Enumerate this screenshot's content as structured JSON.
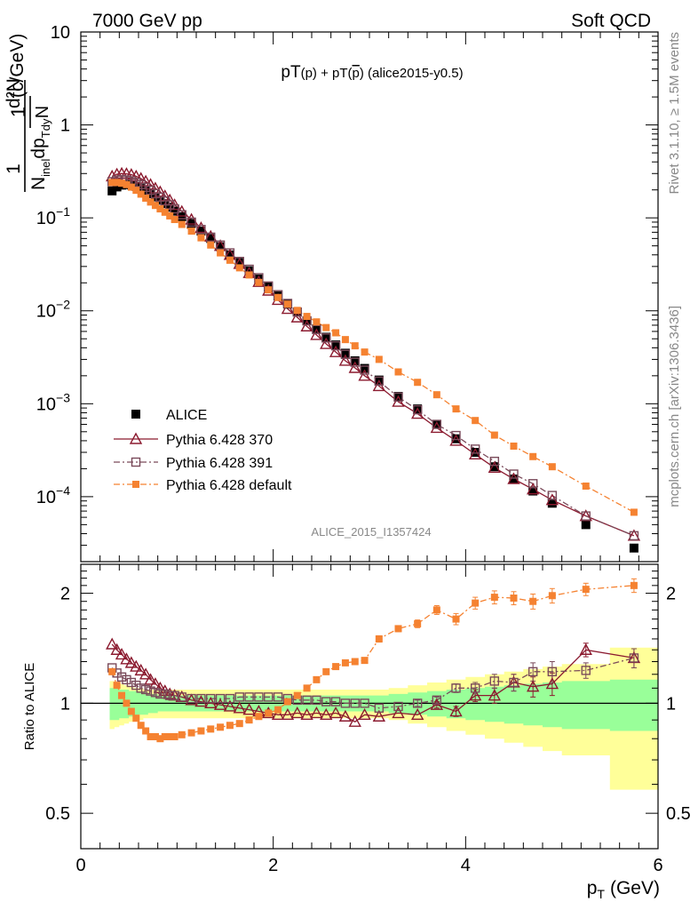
{
  "header": {
    "left": "7000 GeV pp",
    "right": "Soft QCD"
  },
  "side_labels": {
    "rivet": "Rivet 3.1.10, ≥ 1.5M events",
    "mcplots": "mcplots.cern.ch [arXiv:1306.3436]"
  },
  "watermark": "ALICE_2015_I1357424",
  "chart_data": [
    {
      "type": "scatter",
      "title": "pT(p) + pT(p̅) (alice2015-y0.5)",
      "title_parts": {
        "a": "pT",
        "b": "(p)",
        "c": " + pT(",
        "d": "p",
        "e": ") (alice2015-y0.5)"
      },
      "ylabel": "1/N_inel d²N/dp_T dy (c/GeV)",
      "ylabel_parts": {
        "num": "1",
        "d2n": "d²N",
        "n": "N",
        "inel": "inel",
        "dp": "dp",
        "tdy": "Tdy",
        "units": "(c/GeV)"
      },
      "yscale": "log",
      "ylim": [
        2e-05,
        10
      ],
      "xlim": [
        0,
        6
      ],
      "yticks": [
        {
          "v": 10,
          "label": "10"
        },
        {
          "v": 1,
          "label": "1"
        },
        {
          "v": 0.1,
          "base": "10",
          "exp": "−1"
        },
        {
          "v": 0.01,
          "base": "10",
          "exp": "−2"
        },
        {
          "v": 0.001,
          "base": "10",
          "exp": "−3"
        },
        {
          "v": 0.0001,
          "base": "10",
          "exp": "−4"
        }
      ],
      "x": [
        0.325,
        0.375,
        0.425,
        0.475,
        0.525,
        0.575,
        0.625,
        0.675,
        0.725,
        0.775,
        0.825,
        0.875,
        0.925,
        0.975,
        1.05,
        1.15,
        1.25,
        1.35,
        1.45,
        1.55,
        1.65,
        1.75,
        1.85,
        1.95,
        2.05,
        2.15,
        2.25,
        2.35,
        2.45,
        2.55,
        2.65,
        2.75,
        2.85,
        2.95,
        3.1,
        3.3,
        3.5,
        3.7,
        3.9,
        4.1,
        4.3,
        4.5,
        4.7,
        4.9,
        5.25,
        5.75
      ],
      "series": [
        {
          "name": "ALICE",
          "marker": "filled-square",
          "color": "#000000",
          "values": [
            0.195,
            0.215,
            0.225,
            0.228,
            0.226,
            0.218,
            0.207,
            0.195,
            0.182,
            0.168,
            0.155,
            0.142,
            0.13,
            0.118,
            0.103,
            0.087,
            0.072,
            0.06,
            0.049,
            0.04,
            0.033,
            0.027,
            0.022,
            0.018,
            0.0145,
            0.0118,
            0.0097,
            0.0078,
            0.0064,
            0.0052,
            0.0043,
            0.0035,
            0.0029,
            0.0024,
            0.0018,
            0.0012,
            0.00088,
            0.0006,
            0.00042,
            0.0003,
            0.00021,
            0.000155,
            0.000115,
            8.5e-05,
            5e-05,
            2.8e-05
          ]
        },
        {
          "name": "Pythia 6.428 370",
          "marker": "open-triangle",
          "color": "#8b1a2f",
          "line": "solid",
          "values": [
            0.28,
            0.295,
            0.3,
            0.298,
            0.292,
            0.28,
            0.265,
            0.247,
            0.228,
            0.208,
            0.19,
            0.172,
            0.155,
            0.138,
            0.117,
            0.096,
            0.078,
            0.063,
            0.05,
            0.04,
            0.032,
            0.0255,
            0.0205,
            0.0165,
            0.0131,
            0.0105,
            0.0085,
            0.0068,
            0.0055,
            0.0044,
            0.0036,
            0.0029,
            0.00243,
            0.002,
            0.00155,
            0.00105,
            0.00078,
            0.00055,
            0.0004,
            0.000285,
            0.000205,
            0.000155,
            0.00012,
            9.2e-05,
            6.2e-05,
            3.8e-05
          ]
        },
        {
          "name": "Pythia 6.428 391",
          "marker": "open-square",
          "color": "#7a4a5a",
          "line": "dash-dot",
          "values": [
            0.245,
            0.255,
            0.258,
            0.255,
            0.25,
            0.24,
            0.228,
            0.213,
            0.198,
            0.182,
            0.167,
            0.152,
            0.138,
            0.125,
            0.108,
            0.09,
            0.075,
            0.062,
            0.051,
            0.042,
            0.034,
            0.028,
            0.0227,
            0.0185,
            0.0149,
            0.012,
            0.0097,
            0.0078,
            0.0063,
            0.0051,
            0.0042,
            0.0034,
            0.0028,
            0.0023,
            0.00175,
            0.00118,
            0.00086,
            0.0006,
            0.000455,
            0.000325,
            0.00024,
            0.000175,
            0.000138,
            0.000103,
            6.2e-05,
            3.8e-05
          ]
        },
        {
          "name": "Pythia 6.428 default",
          "marker": "small-filled-square",
          "color": "#f58231",
          "line": "dash-dot",
          "values": [
            0.24,
            0.24,
            0.236,
            0.228,
            0.214,
            0.198,
            0.18,
            0.163,
            0.148,
            0.136,
            0.125,
            0.115,
            0.105,
            0.096,
            0.085,
            0.072,
            0.061,
            0.051,
            0.042,
            0.035,
            0.029,
            0.0243,
            0.0202,
            0.0168,
            0.0139,
            0.0118,
            0.0101,
            0.0087,
            0.0076,
            0.0066,
            0.0058,
            0.0049,
            0.0042,
            0.0036,
            0.003,
            0.0022,
            0.0017,
            0.00125,
            0.00088,
            0.00066,
            0.00046,
            0.00035,
            0.00027,
            0.00021,
            0.00013,
            6.8e-05
          ]
        }
      ],
      "legend": {
        "placement": "lower-left"
      }
    },
    {
      "type": "scatter",
      "ylabel": "Ratio to ALICE",
      "xlabel": "p_T (GeV)",
      "xlabel_parts": {
        "p": "p",
        "sub": "T",
        "unit": "(GeV)"
      },
      "yscale": "log",
      "ylim": [
        0.4,
        2.4
      ],
      "xlim": [
        0,
        6
      ],
      "yticks": [
        {
          "v": 0.5,
          "label": "0.5"
        },
        {
          "v": 1,
          "label": "1"
        },
        {
          "v": 2,
          "label": "2"
        }
      ],
      "xticks": [
        {
          "v": 0,
          "label": "0"
        },
        {
          "v": 2,
          "label": "2"
        },
        {
          "v": 4,
          "label": "4"
        },
        {
          "v": 6,
          "label": "6"
        }
      ],
      "band_edges": [
        0.3,
        0.35,
        0.4,
        0.45,
        0.5,
        0.55,
        0.6,
        0.65,
        0.7,
        0.75,
        0.8,
        0.85,
        0.9,
        0.95,
        1.0,
        1.1,
        1.2,
        1.3,
        1.4,
        1.5,
        1.6,
        1.7,
        1.8,
        1.9,
        2.0,
        2.1,
        2.2,
        2.3,
        2.4,
        2.5,
        2.6,
        2.7,
        2.8,
        2.9,
        3.0,
        3.2,
        3.4,
        3.6,
        3.8,
        4.0,
        4.2,
        4.4,
        4.6,
        4.8,
        5.0,
        5.5,
        6.0
      ],
      "band_inner": [
        [
          0.9,
          1.1
        ],
        [
          0.9,
          1.1
        ],
        [
          0.91,
          1.09
        ],
        [
          0.91,
          1.09
        ],
        [
          0.92,
          1.08
        ],
        [
          0.92,
          1.08
        ],
        [
          0.93,
          1.07
        ],
        [
          0.93,
          1.07
        ],
        [
          0.94,
          1.06
        ],
        [
          0.94,
          1.06
        ],
        [
          0.95,
          1.05
        ],
        [
          0.95,
          1.05
        ],
        [
          0.95,
          1.05
        ],
        [
          0.95,
          1.05
        ],
        [
          0.95,
          1.05
        ],
        [
          0.95,
          1.05
        ],
        [
          0.95,
          1.05
        ],
        [
          0.95,
          1.05
        ],
        [
          0.95,
          1.05
        ],
        [
          0.95,
          1.05
        ],
        [
          0.95,
          1.05
        ],
        [
          0.95,
          1.05
        ],
        [
          0.95,
          1.05
        ],
        [
          0.95,
          1.05
        ],
        [
          0.95,
          1.05
        ],
        [
          0.95,
          1.05
        ],
        [
          0.95,
          1.05
        ],
        [
          0.95,
          1.05
        ],
        [
          0.95,
          1.05
        ],
        [
          0.95,
          1.05
        ],
        [
          0.95,
          1.05
        ],
        [
          0.95,
          1.05
        ],
        [
          0.95,
          1.05
        ],
        [
          0.95,
          1.05
        ],
        [
          0.95,
          1.05
        ],
        [
          0.94,
          1.06
        ],
        [
          0.93,
          1.07
        ],
        [
          0.92,
          1.08
        ],
        [
          0.91,
          1.09
        ],
        [
          0.9,
          1.1
        ],
        [
          0.89,
          1.11
        ],
        [
          0.88,
          1.12
        ],
        [
          0.87,
          1.13
        ],
        [
          0.86,
          1.14
        ],
        [
          0.85,
          1.15
        ],
        [
          0.84,
          1.16
        ],
        [
          0.82,
          1.18
        ]
      ],
      "band_outer": [
        [
          0.85,
          1.15
        ],
        [
          0.86,
          1.14
        ],
        [
          0.87,
          1.13
        ],
        [
          0.88,
          1.12
        ],
        [
          0.89,
          1.11
        ],
        [
          0.9,
          1.1
        ],
        [
          0.9,
          1.1
        ],
        [
          0.91,
          1.09
        ],
        [
          0.91,
          1.09
        ],
        [
          0.91,
          1.09
        ],
        [
          0.91,
          1.09
        ],
        [
          0.91,
          1.09
        ],
        [
          0.91,
          1.09
        ],
        [
          0.91,
          1.09
        ],
        [
          0.91,
          1.09
        ],
        [
          0.91,
          1.09
        ],
        [
          0.91,
          1.09
        ],
        [
          0.91,
          1.09
        ],
        [
          0.91,
          1.09
        ],
        [
          0.91,
          1.09
        ],
        [
          0.91,
          1.09
        ],
        [
          0.91,
          1.09
        ],
        [
          0.91,
          1.09
        ],
        [
          0.91,
          1.09
        ],
        [
          0.91,
          1.09
        ],
        [
          0.91,
          1.09
        ],
        [
          0.91,
          1.09
        ],
        [
          0.91,
          1.09
        ],
        [
          0.91,
          1.09
        ],
        [
          0.91,
          1.09
        ],
        [
          0.91,
          1.09
        ],
        [
          0.91,
          1.09
        ],
        [
          0.91,
          1.09
        ],
        [
          0.91,
          1.09
        ],
        [
          0.91,
          1.09
        ],
        [
          0.9,
          1.1
        ],
        [
          0.88,
          1.12
        ],
        [
          0.86,
          1.14
        ],
        [
          0.84,
          1.16
        ],
        [
          0.82,
          1.18
        ],
        [
          0.8,
          1.2
        ],
        [
          0.78,
          1.22
        ],
        [
          0.76,
          1.24
        ],
        [
          0.74,
          1.26
        ],
        [
          0.72,
          1.28
        ],
        [
          0.58,
          1.42
        ],
        [
          0.58,
          1.42
        ]
      ],
      "x": [
        0.325,
        0.375,
        0.425,
        0.475,
        0.525,
        0.575,
        0.625,
        0.675,
        0.725,
        0.775,
        0.825,
        0.875,
        0.925,
        0.975,
        1.05,
        1.15,
        1.25,
        1.35,
        1.45,
        1.55,
        1.65,
        1.75,
        1.85,
        1.95,
        2.05,
        2.15,
        2.25,
        2.35,
        2.45,
        2.55,
        2.65,
        2.75,
        2.85,
        2.95,
        3.1,
        3.3,
        3.5,
        3.7,
        3.9,
        4.1,
        4.3,
        4.5,
        4.7,
        4.9,
        5.25,
        5.75
      ],
      "series": [
        {
          "name": "Pythia 6.428 370",
          "marker": "open-triangle",
          "color": "#8b1a2f",
          "line": "solid",
          "values": [
            1.45,
            1.4,
            1.36,
            1.32,
            1.29,
            1.26,
            1.23,
            1.2,
            1.16,
            1.13,
            1.1,
            1.08,
            1.06,
            1.05,
            1.04,
            1.02,
            1.01,
            1.0,
            0.99,
            0.98,
            0.97,
            0.96,
            0.95,
            0.94,
            0.93,
            0.93,
            0.94,
            0.93,
            0.94,
            0.93,
            0.94,
            0.92,
            0.89,
            0.93,
            0.92,
            0.94,
            0.93,
            0.99,
            0.95,
            1.05,
            1.05,
            1.14,
            1.11,
            1.13,
            1.4,
            1.33
          ],
          "errors": [
            0,
            0,
            0,
            0,
            0,
            0,
            0,
            0,
            0,
            0,
            0,
            0,
            0,
            0,
            0,
            0,
            0,
            0,
            0,
            0,
            0,
            0,
            0,
            0,
            0,
            0,
            0,
            0,
            0,
            0,
            0,
            0,
            0,
            0,
            0,
            0,
            0,
            0.02,
            0.03,
            0.04,
            0.05,
            0.06,
            0.07,
            0.08,
            0.06,
            0.08
          ]
        },
        {
          "name": "Pythia 6.428 391",
          "marker": "open-square",
          "color": "#7a4a5a",
          "line": "dash-dot",
          "values": [
            1.25,
            1.21,
            1.18,
            1.16,
            1.14,
            1.12,
            1.1,
            1.09,
            1.08,
            1.07,
            1.06,
            1.06,
            1.05,
            1.05,
            1.04,
            1.03,
            1.03,
            1.03,
            1.03,
            1.03,
            1.04,
            1.04,
            1.04,
            1.04,
            1.04,
            1.03,
            1.02,
            1.02,
            1.02,
            1.01,
            1.01,
            1.0,
            1.0,
            1.0,
            0.97,
            0.98,
            1.0,
            1.02,
            1.1,
            1.1,
            1.15,
            1.14,
            1.22,
            1.22,
            1.23,
            1.33
          ],
          "errors": [
            0,
            0,
            0,
            0,
            0,
            0,
            0,
            0,
            0,
            0,
            0,
            0,
            0,
            0,
            0,
            0,
            0,
            0,
            0,
            0,
            0,
            0,
            0,
            0,
            0,
            0,
            0,
            0,
            0,
            0,
            0,
            0,
            0,
            0,
            0,
            0,
            0.02,
            0.02,
            0.03,
            0.04,
            0.05,
            0.06,
            0.07,
            0.08,
            0.06,
            0.08
          ]
        },
        {
          "name": "Pythia 6.428 default",
          "marker": "small-filled-square",
          "color": "#f58231",
          "line": "dash-dot",
          "values": [
            1.22,
            1.12,
            1.05,
            1.0,
            0.95,
            0.91,
            0.87,
            0.84,
            0.81,
            0.81,
            0.8,
            0.81,
            0.81,
            0.81,
            0.82,
            0.83,
            0.84,
            0.85,
            0.86,
            0.87,
            0.88,
            0.9,
            0.92,
            0.94,
            0.96,
            1.01,
            1.05,
            1.1,
            1.16,
            1.22,
            1.26,
            1.29,
            1.3,
            1.31,
            1.5,
            1.6,
            1.65,
            1.8,
            1.7,
            1.88,
            1.95,
            1.94,
            1.9,
            1.97,
            2.05,
            2.1
          ],
          "errors": [
            0,
            0,
            0,
            0,
            0,
            0,
            0,
            0,
            0,
            0,
            0,
            0,
            0,
            0,
            0,
            0,
            0,
            0,
            0,
            0,
            0,
            0,
            0,
            0,
            0,
            0,
            0,
            0,
            0,
            0,
            0,
            0,
            0,
            0,
            0.03,
            0.03,
            0.04,
            0.05,
            0.06,
            0.07,
            0.08,
            0.08,
            0.09,
            0.09,
            0.08,
            0.09
          ]
        }
      ]
    }
  ]
}
